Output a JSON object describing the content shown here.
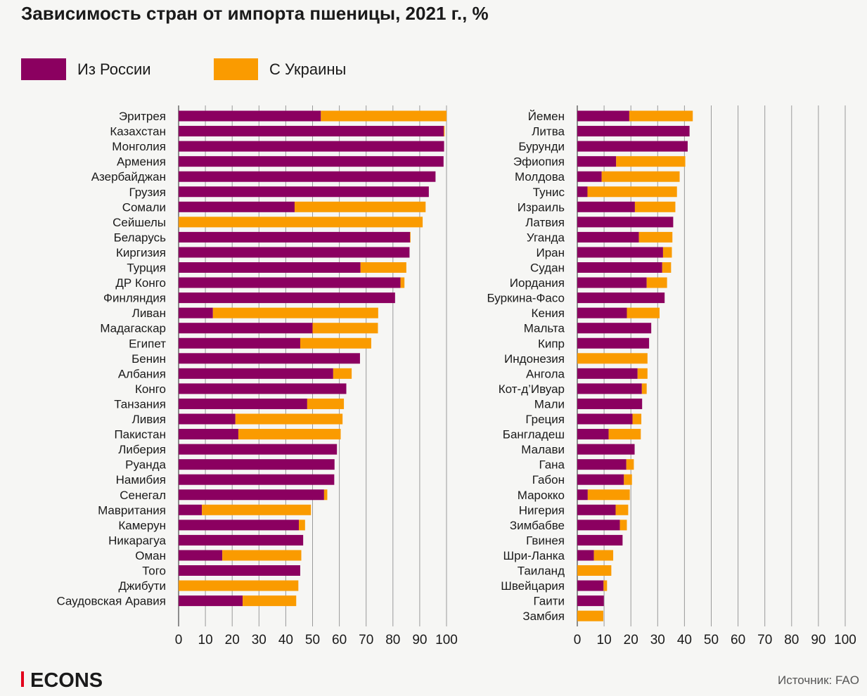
{
  "title": "Зависимость стран от импорта пшеницы, 2021 г., %",
  "source": "Источник: FAO",
  "logo": "ECONS",
  "colors": {
    "russia": "#8b0060",
    "ukraine": "#fa9b00",
    "background": "#f6f6f4",
    "logo_accent": "#e3001b"
  },
  "chart_data": [
    {
      "type": "bar",
      "orientation": "horizontal",
      "stacked": true,
      "xlim": [
        0,
        100
      ],
      "xticks": [
        "0",
        "10",
        "20",
        "30",
        "40",
        "50",
        "60",
        "70",
        "80",
        "90",
        "100"
      ],
      "grid": true,
      "legend_placement": "top-left",
      "categories": [
        "Эритрея",
        "Казахстан",
        "Монголия",
        "Армения",
        "Азербайджан",
        "Грузия",
        "Сомали",
        "Сейшелы",
        "Беларусь",
        "Киргизия",
        "Турция",
        "ДР Конго",
        "Финляндия",
        "Ливан",
        "Мадагаскар",
        "Египет",
        "Бенин",
        "Албания",
        "Конго",
        "Танзания",
        "Ливия",
        "Пакистан",
        "Либерия",
        "Руанда",
        "Намибия",
        "Сенегал",
        "Мавритания",
        "Камерун",
        "Никарагуа",
        "Оман",
        "Того",
        "Джибути",
        "Саудовская Аравия"
      ],
      "series": [
        {
          "name": "Из России",
          "color": "#8b0060",
          "values": [
            53.1,
            99.0,
            99.1,
            98.9,
            95.9,
            93.4,
            43.3,
            0,
            86.4,
            86.2,
            67.9,
            82.8,
            80.8,
            12.8,
            50.0,
            45.4,
            67.7,
            57.7,
            62.6,
            48.0,
            21.2,
            22.3,
            59.1,
            58.2,
            58.1,
            54.3,
            8.7,
            44.9,
            46.5,
            16.3,
            45.4,
            0,
            23.9
          ]
        },
        {
          "name": "С Украины",
          "color": "#fa9b00",
          "values": [
            46.9,
            0.3,
            0,
            0,
            0,
            0,
            48.9,
            91.1,
            0.2,
            0,
            17.1,
            1.5,
            0,
            61.7,
            24.4,
            26.5,
            0,
            6.9,
            0,
            13.7,
            40.0,
            38.2,
            0,
            0,
            0,
            1.2,
            40.7,
            2.3,
            0,
            29.5,
            0,
            44.7,
            20.0
          ]
        }
      ]
    },
    {
      "type": "bar",
      "orientation": "horizontal",
      "stacked": true,
      "xlim": [
        0,
        100
      ],
      "xticks": [
        "0",
        "10",
        "20",
        "30",
        "40",
        "50",
        "60",
        "70",
        "80",
        "90",
        "100"
      ],
      "grid": true,
      "categories": [
        "Йемен",
        "Литва",
        "Бурунди",
        "Эфиопия",
        "Молдова",
        "Тунис",
        "Израиль",
        "Латвия",
        "Уганда",
        "Иран",
        "Судан",
        "Иордания",
        "Буркина-Фасо",
        "Кения",
        "Мальта",
        "Кипр",
        "Индонезия",
        "Ангола",
        "Кот-д’Ивуар",
        "Мали",
        "Греция",
        "Бангладеш",
        "Малави",
        "Гана",
        "Габон",
        "Марокко",
        "Нигерия",
        "Зимбабве",
        "Гвинея",
        "Шри-Ланка",
        "Таиланд",
        "Швейцария",
        "Гаити",
        "Замбия"
      ],
      "series": [
        {
          "name": "Из России",
          "color": "#8b0060",
          "values": [
            19.4,
            41.9,
            41.2,
            14.5,
            9.1,
            3.8,
            21.5,
            35.8,
            23.0,
            32.0,
            31.7,
            25.9,
            32.6,
            18.5,
            27.6,
            26.8,
            0,
            22.5,
            24.1,
            24.2,
            20.6,
            11.7,
            21.4,
            18.3,
            17.4,
            3.9,
            14.3,
            15.9,
            16.9,
            6.2,
            0,
            9.8,
            9.9,
            0
          ]
        },
        {
          "name": "С Украины",
          "color": "#fa9b00",
          "values": [
            23.7,
            0,
            0,
            25.8,
            29.1,
            33.4,
            15.1,
            0,
            12.5,
            3.3,
            3.3,
            7.6,
            0,
            12.2,
            0,
            0,
            26.2,
            3.7,
            1.8,
            0,
            3.3,
            12.0,
            0,
            2.8,
            3.0,
            15.7,
            4.7,
            2.6,
            0,
            7.2,
            12.7,
            1.3,
            0,
            9.7
          ]
        }
      ]
    }
  ]
}
